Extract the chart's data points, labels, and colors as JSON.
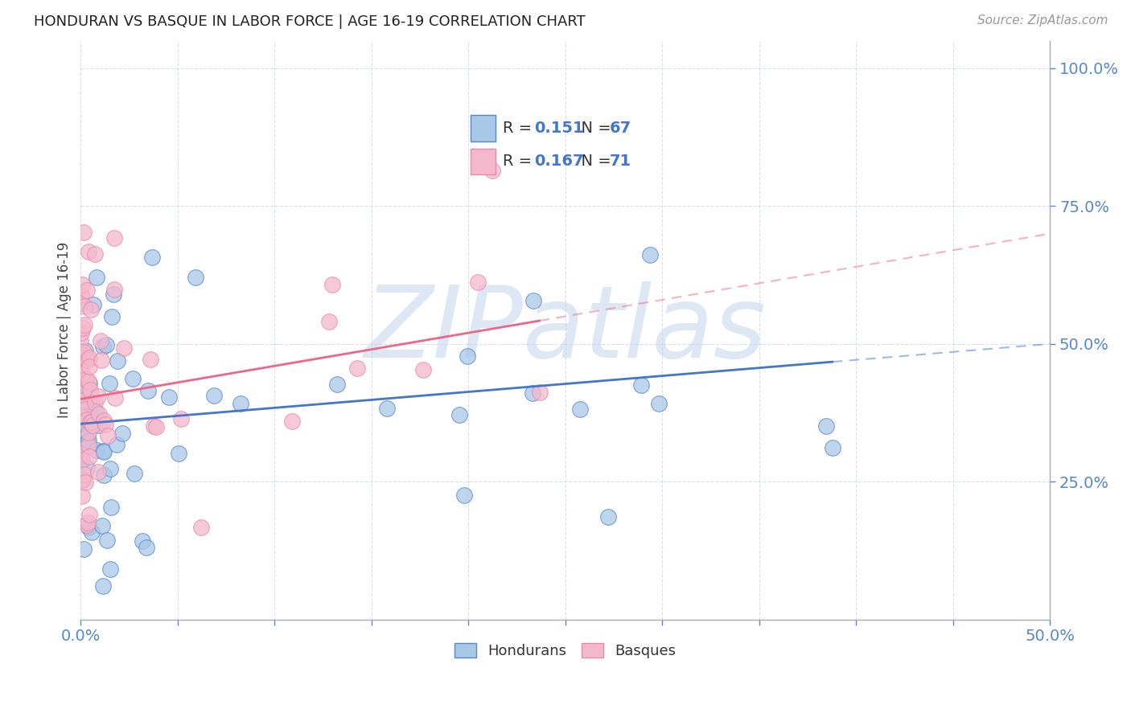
{
  "title": "HONDURAN VS BASQUE IN LABOR FORCE | AGE 16-19 CORRELATION CHART",
  "source_text": "Source: ZipAtlas.com",
  "ylabel": "In Labor Force | Age 16-19",
  "xlim": [
    0.0,
    0.5
  ],
  "ylim": [
    0.0,
    1.05
  ],
  "blue_color": "#a8c8e8",
  "pink_color": "#f4b8cc",
  "blue_edge_color": "#5588cc",
  "pink_edge_color": "#e888aa",
  "blue_line_color": "#4477cc",
  "pink_line_color": "#ee6688",
  "R_blue": "0.151",
  "N_blue": "67",
  "R_pink": "0.167",
  "N_pink": "71",
  "legend_labels": [
    "Hondurans",
    "Basques"
  ],
  "watermark": "ZIPatlas",
  "watermark_color": "#c8d8ee",
  "tick_color": "#5588cc",
  "grid_color": "#d4dce8",
  "blue_intercept": 0.355,
  "blue_slope": 0.29,
  "pink_intercept": 0.4,
  "pink_slope": 0.6
}
